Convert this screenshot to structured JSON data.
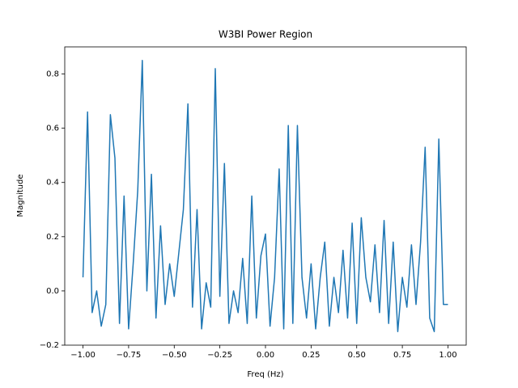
{
  "chart_data": {
    "type": "line",
    "title": "W3BI Power Region",
    "x_label": "Freq (Hz)",
    "y_label": "Magnitude",
    "x": [
      -1.0,
      -0.975,
      -0.95,
      -0.925,
      -0.9,
      -0.875,
      -0.85,
      -0.825,
      -0.8,
      -0.775,
      -0.75,
      -0.725,
      -0.7,
      -0.675,
      -0.65,
      -0.625,
      -0.6,
      -0.575,
      -0.55,
      -0.525,
      -0.5,
      -0.475,
      -0.45,
      -0.425,
      -0.4,
      -0.375,
      -0.35,
      -0.325,
      -0.3,
      -0.275,
      -0.25,
      -0.225,
      -0.2,
      -0.175,
      -0.15,
      -0.125,
      -0.1,
      -0.075,
      -0.05,
      -0.025,
      0.0,
      0.025,
      0.05,
      0.075,
      0.1,
      0.125,
      0.15,
      0.175,
      0.2,
      0.225,
      0.25,
      0.275,
      0.3,
      0.325,
      0.35,
      0.375,
      0.4,
      0.425,
      0.45,
      0.475,
      0.5,
      0.525,
      0.55,
      0.575,
      0.6,
      0.625,
      0.65,
      0.675,
      0.7,
      0.725,
      0.75,
      0.775,
      0.8,
      0.825,
      0.85,
      0.875,
      0.9,
      0.925,
      0.95,
      0.975,
      1.0
    ],
    "series": [
      {
        "color": "#1f77b4",
        "values": [
          0.05,
          0.66,
          -0.08,
          0.0,
          -0.13,
          -0.05,
          0.65,
          0.49,
          -0.12,
          0.35,
          -0.14,
          0.1,
          0.37,
          0.85,
          0.0,
          0.43,
          -0.1,
          0.24,
          -0.05,
          0.1,
          -0.02,
          0.14,
          0.3,
          0.69,
          -0.06,
          0.3,
          -0.14,
          0.03,
          -0.06,
          0.82,
          -0.02,
          0.47,
          -0.12,
          0.0,
          -0.08,
          0.12,
          -0.12,
          0.35,
          -0.1,
          0.13,
          0.21,
          -0.13,
          0.05,
          0.45,
          -0.14,
          0.61,
          -0.12,
          0.61,
          0.05,
          -0.1,
          0.1,
          -0.14,
          0.05,
          0.18,
          -0.13,
          0.05,
          -0.08,
          0.15,
          -0.1,
          0.25,
          -0.12,
          0.27,
          0.05,
          -0.04,
          0.17,
          -0.08,
          0.26,
          -0.12,
          0.18,
          -0.15,
          0.05,
          -0.06,
          0.17,
          -0.05,
          0.18,
          0.53,
          -0.1,
          -0.15,
          0.56,
          -0.05,
          -0.05
        ]
      }
    ],
    "xlim": [
      -1.1,
      1.1
    ],
    "ylim": [
      -0.2,
      0.9
    ],
    "xticks": [
      {
        "value": -1.0,
        "label": "−1.00"
      },
      {
        "value": -0.75,
        "label": "−0.75"
      },
      {
        "value": -0.5,
        "label": "−0.50"
      },
      {
        "value": -0.25,
        "label": "−0.25"
      },
      {
        "value": 0.0,
        "label": "0.00"
      },
      {
        "value": 0.25,
        "label": "0.25"
      },
      {
        "value": 0.5,
        "label": "0.50"
      },
      {
        "value": 0.75,
        "label": "0.75"
      },
      {
        "value": 1.0,
        "label": "1.00"
      }
    ],
    "yticks": [
      {
        "value": -0.2,
        "label": "−0.2"
      },
      {
        "value": 0.0,
        "label": "0.0"
      },
      0.2,
      0.4,
      0.6,
      0.8
    ]
  }
}
